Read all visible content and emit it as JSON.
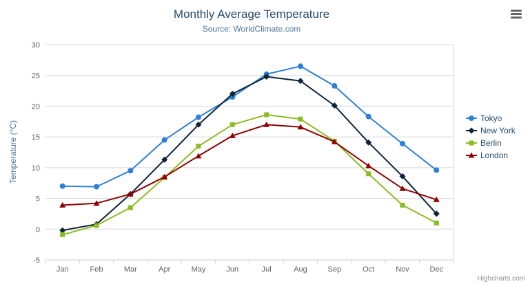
{
  "chart_data": {
    "type": "line",
    "title": "Monthly Average Temperature",
    "subtitle": "Source: WorldClimate.com",
    "xlabel": "",
    "ylabel": "Temperature (°C)",
    "categories": [
      "Jan",
      "Feb",
      "Mar",
      "Apr",
      "May",
      "Jun",
      "Jul",
      "Aug",
      "Sep",
      "Oct",
      "Nov",
      "Dec"
    ],
    "ylim": [
      -5,
      30
    ],
    "ytick_step": 5,
    "grid": true,
    "legend_position": "right",
    "series": [
      {
        "name": "Tokyo",
        "color": "#2f7ed8",
        "marker": "circle",
        "values": [
          7.0,
          6.9,
          9.5,
          14.5,
          18.2,
          21.5,
          25.2,
          26.5,
          23.3,
          18.3,
          13.9,
          9.6
        ]
      },
      {
        "name": "New York",
        "color": "#0d233a",
        "marker": "diamond",
        "values": [
          -0.2,
          0.8,
          5.7,
          11.3,
          17.0,
          22.0,
          24.8,
          24.1,
          20.1,
          14.1,
          8.6,
          2.5
        ]
      },
      {
        "name": "Berlin",
        "color": "#8bbc21",
        "marker": "square",
        "values": [
          -0.9,
          0.6,
          3.5,
          8.4,
          13.5,
          17.0,
          18.6,
          17.9,
          14.3,
          9.0,
          3.9,
          1.0
        ]
      },
      {
        "name": "London",
        "color": "#910000",
        "marker": "triangle",
        "values": [
          3.9,
          4.2,
          5.7,
          8.5,
          11.9,
          15.2,
          17.0,
          16.6,
          14.2,
          10.3,
          6.6,
          4.8
        ]
      }
    ]
  },
  "colors": {
    "gridline": "#d8d8d8",
    "axis_line": "#c0d0e0",
    "tick_label": "#606060",
    "title": "#274b6d",
    "subtitle": "#4d759e"
  },
  "credits": {
    "text": "Highcharts.com"
  }
}
